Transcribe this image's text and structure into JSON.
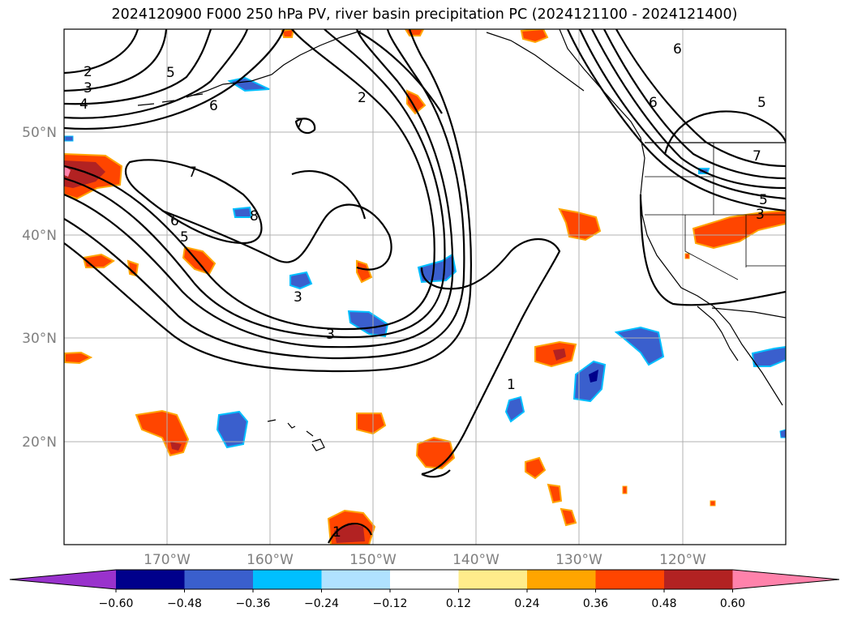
{
  "title": "2024120900 F000 250 hPa PV, river basin precipitation PC (2024121100 - 2024121400)",
  "map": {
    "lat_labels": [
      "50°N",
      "40°N",
      "30°N",
      "20°N"
    ],
    "lon_labels": [
      "170°W",
      "160°W",
      "150°W",
      "140°W",
      "130°W",
      "120°W"
    ],
    "contour_labels": [
      "2",
      "3",
      "4",
      "5",
      "6",
      "7",
      "7",
      "8",
      "6",
      "5",
      "3",
      "3",
      "2",
      "6",
      "6",
      "5",
      "7",
      "5",
      "3",
      "1",
      "1"
    ]
  },
  "colorbar": {
    "ticks": [
      "−0.60",
      "−0.48",
      "−0.36",
      "−0.24",
      "−0.12",
      "0.12",
      "0.24",
      "0.36",
      "0.48",
      "0.60"
    ],
    "colors": [
      "#9932cc",
      "#00008b",
      "#3a5fcd",
      "#00bfff",
      "#b0e2ff",
      "#ffffff",
      "#ffec8b",
      "#ffa500",
      "#ff4500",
      "#b22222",
      "#ff82ab"
    ]
  }
}
